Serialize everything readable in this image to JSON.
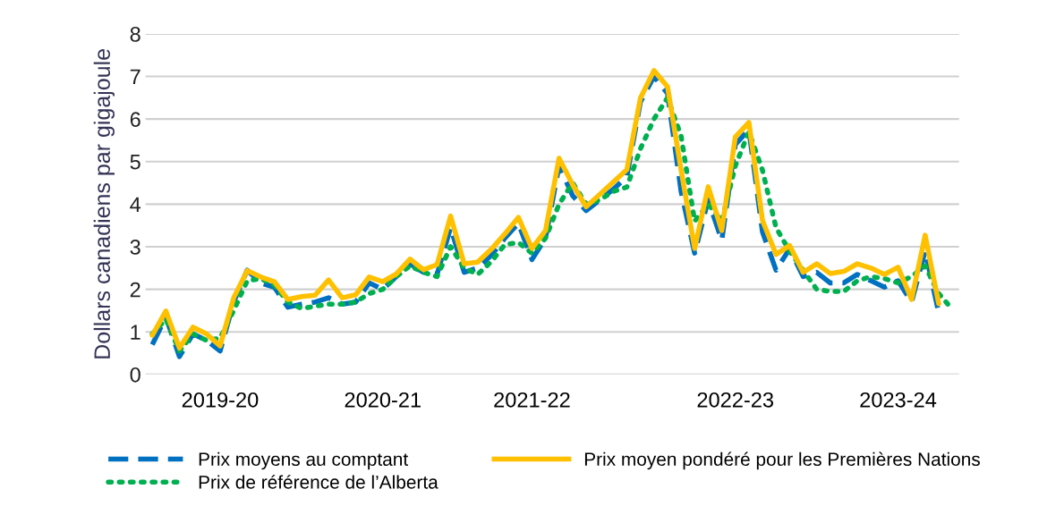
{
  "chart_data": {
    "type": "line",
    "ylabel": "Dollars canadiens par gigajoule",
    "categories": [
      null,
      null,
      null,
      null,
      null,
      "2019-20",
      null,
      null,
      null,
      null,
      null,
      null,
      null,
      null,
      null,
      null,
      null,
      "2020-21",
      null,
      null,
      null,
      null,
      null,
      null,
      null,
      null,
      null,
      null,
      "2021-22",
      null,
      null,
      null,
      null,
      null,
      null,
      null,
      null,
      null,
      null,
      null,
      null,
      null,
      null,
      "2022-23",
      null,
      null,
      null,
      null,
      null,
      null,
      null,
      null,
      null,
      null,
      null,
      "2023-24",
      null,
      null,
      null,
      null
    ],
    "series": [
      {
        "name": "Prix moyens au comptant",
        "color": "#0070c0",
        "line_style": "dashed",
        "values": [
          0.7,
          1.35,
          0.42,
          0.95,
          0.8,
          0.55,
          1.7,
          2.45,
          2.15,
          2.05,
          1.58,
          1.65,
          1.7,
          1.8,
          1.65,
          1.7,
          2.15,
          2.0,
          2.3,
          2.6,
          2.4,
          2.35,
          3.45,
          2.4,
          2.5,
          2.8,
          3.2,
          3.55,
          2.7,
          3.2,
          4.9,
          4.2,
          3.85,
          4.1,
          4.35,
          4.65,
          6.4,
          7.0,
          6.6,
          4.3,
          2.85,
          4.1,
          3.15,
          5.4,
          5.75,
          3.35,
          2.45,
          2.95,
          2.3,
          2.4,
          2.15,
          2.15,
          2.35,
          2.2,
          2.05,
          2.2,
          1.7,
          2.9,
          1.45,
          null
        ]
      },
      {
        "name": "Prix de référence de l’Alberta",
        "color": "#00b050",
        "line_style": "dotted",
        "values": [
          0.95,
          1.3,
          0.55,
          0.95,
          0.8,
          0.85,
          1.5,
          2.2,
          2.25,
          2.1,
          1.7,
          1.55,
          1.6,
          1.65,
          1.65,
          1.7,
          1.9,
          2.0,
          2.3,
          2.55,
          2.4,
          2.3,
          3.0,
          2.5,
          2.35,
          2.65,
          3.05,
          3.1,
          2.85,
          3.2,
          4.0,
          4.5,
          4.0,
          4.1,
          4.3,
          4.4,
          5.3,
          6.0,
          6.5,
          5.6,
          3.6,
          4.0,
          3.6,
          4.9,
          5.7,
          4.8,
          3.45,
          2.9,
          2.45,
          2.0,
          1.95,
          1.95,
          2.2,
          2.3,
          2.25,
          2.15,
          2.3,
          2.55,
          1.9,
          1.53
        ]
      },
      {
        "name": "Prix moyen pondéré pour les Premières Nations",
        "color": "#ffc000",
        "line_style": "solid",
        "values": [
          0.92,
          1.49,
          0.62,
          1.11,
          0.95,
          0.67,
          1.8,
          2.44,
          2.29,
          2.18,
          1.76,
          1.83,
          1.86,
          2.22,
          1.8,
          1.87,
          2.29,
          2.18,
          2.36,
          2.71,
          2.46,
          2.58,
          3.72,
          2.6,
          2.64,
          2.94,
          3.3,
          3.69,
          2.96,
          3.38,
          5.08,
          4.46,
          3.94,
          4.23,
          4.52,
          4.81,
          6.49,
          7.14,
          6.76,
          4.8,
          2.96,
          4.41,
          3.38,
          5.58,
          5.92,
          3.62,
          2.82,
          3.03,
          2.4,
          2.6,
          2.37,
          2.42,
          2.6,
          2.5,
          2.35,
          2.52,
          1.76,
          3.27,
          1.66,
          null
        ]
      }
    ],
    "ylim": [
      0,
      8
    ],
    "yticks": [
      0,
      1,
      2,
      3,
      4,
      5,
      6,
      7,
      8
    ],
    "grid": "y",
    "legend": "bottom"
  }
}
